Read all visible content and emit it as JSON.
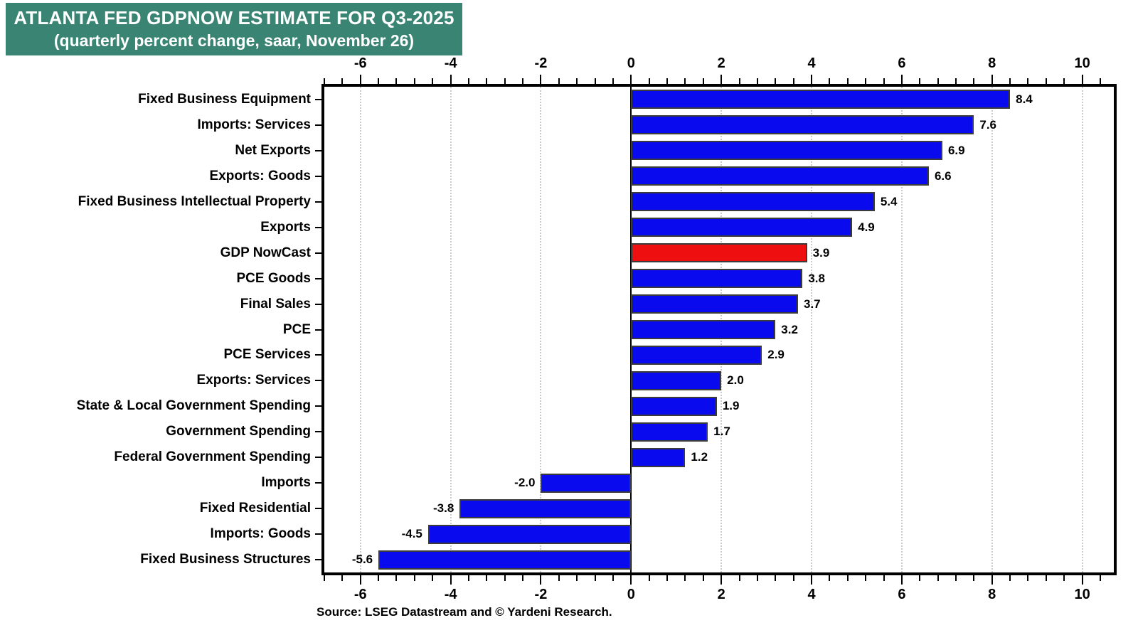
{
  "header": {
    "title": "ATLANTA FED GDPNOW ESTIMATE FOR Q3-2025",
    "subtitle": "(quarterly percent change, saar, November 26)",
    "bg_color": "#3A8474",
    "text_color": "#FFFFFF"
  },
  "footer": {
    "source": "Source: LSEG Datastream and © Yardeni Research."
  },
  "chart_data": {
    "type": "bar",
    "orientation": "horizontal",
    "title": "ATLANTA FED GDPNOW ESTIMATE FOR Q3-2025",
    "subtitle": "(quarterly percent change, saar, November 26)",
    "categories": [
      "Fixed Business Equipment",
      "Imports: Services",
      "Net Exports",
      "Exports: Goods",
      "Fixed Business Intellectual Property",
      "Exports",
      "GDP NowCast",
      "PCE Goods",
      "Final Sales",
      "PCE",
      "PCE Services",
      "Exports: Services",
      "State & Local Government Spending",
      "Government Spending",
      "Federal Government Spending",
      "Imports",
      "Fixed Residential",
      "Imports: Goods",
      "Fixed Business Structures"
    ],
    "values": [
      8.4,
      7.6,
      6.9,
      6.6,
      5.4,
      4.9,
      3.9,
      3.8,
      3.7,
      3.2,
      2.9,
      2.0,
      1.9,
      1.7,
      1.2,
      -2.0,
      -3.8,
      -4.5,
      -5.6
    ],
    "highlight_index": 6,
    "highlight_category": "GDP NowCast",
    "bar_color": "#0A0AEE",
    "highlight_color": "#EE1010",
    "grid_color": "#CBCBCB",
    "xlim": [
      -6.8,
      10.7
    ],
    "x_major_ticks": [
      -6,
      -4,
      -2,
      0,
      2,
      4,
      6,
      8,
      10
    ],
    "x_minor_step": 0.4,
    "grid": "vertical dotted at major ticks",
    "zero_line": true,
    "value_labels_decimals": 1,
    "legend": "none"
  }
}
